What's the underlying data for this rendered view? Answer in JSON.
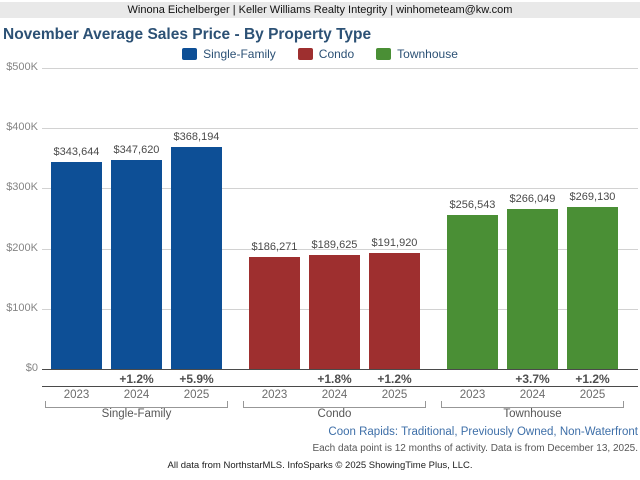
{
  "header": {
    "contact": "Winona Eichelberger | Keller Williams Realty Integrity | winhometeam@kw.com"
  },
  "title": "November Average Sales Price - By Property Type",
  "legend": [
    {
      "label": "Single-Family",
      "color": "#0d4f96"
    },
    {
      "label": "Condo",
      "color": "#9e2f2f"
    },
    {
      "label": "Townhouse",
      "color": "#4a8f35"
    }
  ],
  "colors": {
    "single_family": "#0d4f96",
    "condo": "#9e2f2f",
    "townhouse": "#4a8f35",
    "title_text": "#2c5175",
    "filters_link": "#3e6fa8",
    "gridline": "#d2d2d2"
  },
  "chart_data": {
    "type": "bar",
    "title": "November Average Sales Price - By Property Type",
    "xlabel": "",
    "ylabel": "",
    "ylim": [
      0,
      500000
    ],
    "y_ticks": [
      "$500K",
      "$400K",
      "$300K",
      "$200K",
      "$100K",
      "$0"
    ],
    "grid": "horizontal",
    "legend_position": "top",
    "groups": [
      {
        "label": "Single-Family",
        "color": "#0d4f96",
        "bars": [
          {
            "year": "2023",
            "value": 343644,
            "value_label": "$343,644",
            "pct_change": ""
          },
          {
            "year": "2024",
            "value": 347620,
            "value_label": "$347,620",
            "pct_change": "+1.2%"
          },
          {
            "year": "2025",
            "value": 368194,
            "value_label": "$368,194",
            "pct_change": "+5.9%"
          }
        ]
      },
      {
        "label": "Condo",
        "color": "#9e2f2f",
        "bars": [
          {
            "year": "2023",
            "value": 186271,
            "value_label": "$186,271",
            "pct_change": ""
          },
          {
            "year": "2024",
            "value": 189625,
            "value_label": "$189,625",
            "pct_change": "+1.8%"
          },
          {
            "year": "2025",
            "value": 191920,
            "value_label": "$191,920",
            "pct_change": "+1.2%"
          }
        ]
      },
      {
        "label": "Townhouse",
        "color": "#4a8f35",
        "bars": [
          {
            "year": "2023",
            "value": 256543,
            "value_label": "$256,543",
            "pct_change": ""
          },
          {
            "year": "2024",
            "value": 266049,
            "value_label": "$266,049",
            "pct_change": "+3.7%"
          },
          {
            "year": "2025",
            "value": 269130,
            "value_label": "$269,130",
            "pct_change": "+1.2%"
          }
        ]
      }
    ]
  },
  "footer": {
    "filters": "Coon Rapids: Traditional, Previously Owned, Non-Waterfront",
    "data_note": "Each data point is 12 months of activity. Data is from December 13, 2025.",
    "attribution": "All data from NorthstarMLS. InfoSparks © 2025 ShowingTime Plus, LLC."
  }
}
